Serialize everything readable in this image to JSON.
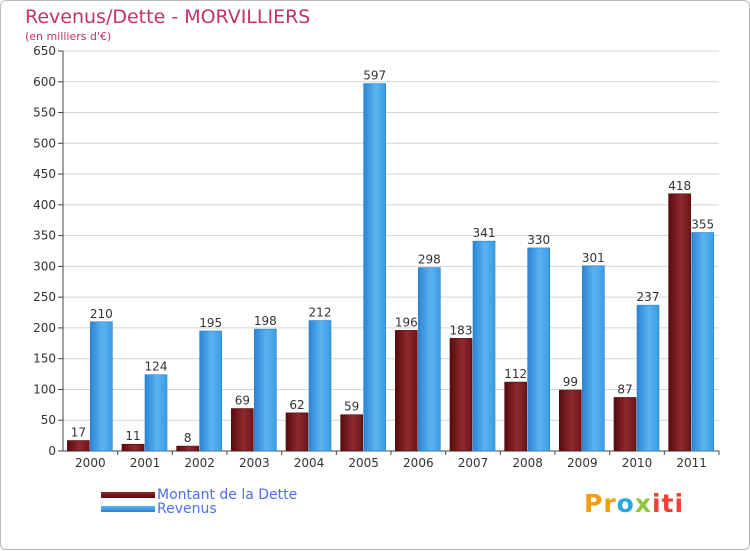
{
  "chart_data": {
    "type": "bar",
    "title": "Revenus/Dette - MORVILLIERS",
    "subtitle": "(en milliers d'€)",
    "xlabel": "",
    "ylabel": "",
    "ylim": [
      0,
      650
    ],
    "ytick_step": 50,
    "grid": true,
    "categories": [
      "2000",
      "2001",
      "2002",
      "2003",
      "2004",
      "2005",
      "2006",
      "2007",
      "2008",
      "2009",
      "2010",
      "2011"
    ],
    "series": [
      {
        "name": "Montant de la Dette",
        "color": "#7a1a1e",
        "values": [
          17,
          11,
          8,
          69,
          62,
          59,
          196,
          183,
          112,
          99,
          87,
          418
        ]
      },
      {
        "name": "Revenus",
        "color": "#3d9be2",
        "values": [
          210,
          124,
          195,
          198,
          212,
          597,
          298,
          341,
          330,
          301,
          237,
          355
        ]
      }
    ],
    "legend": "bottom-left"
  },
  "logo": {
    "text": "Proxiti",
    "parts": [
      "Pr",
      "o",
      "x",
      "iti"
    ]
  }
}
